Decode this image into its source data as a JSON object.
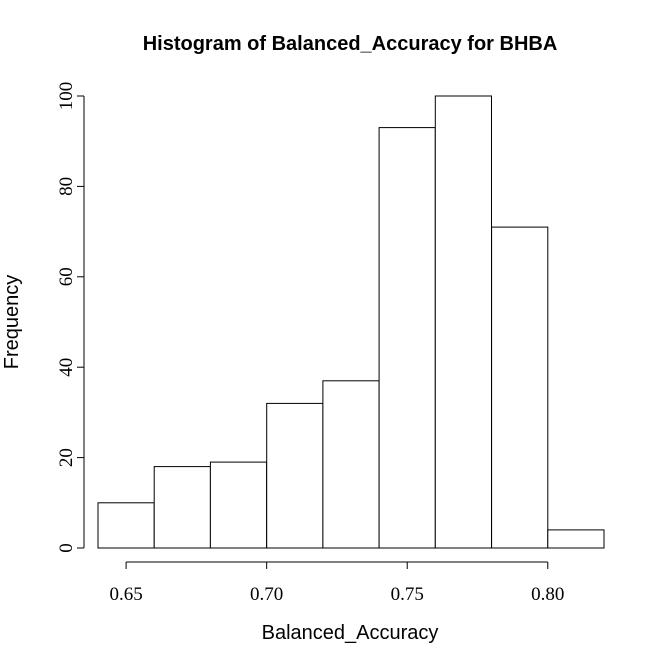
{
  "chart_data": {
    "type": "bar",
    "title": "Histogram of Balanced_Accuracy for BHBA",
    "xlabel": "Balanced_Accuracy",
    "ylabel": "Frequency",
    "bins": [
      {
        "start": 0.64,
        "end": 0.66,
        "count": 10
      },
      {
        "start": 0.66,
        "end": 0.68,
        "count": 18
      },
      {
        "start": 0.68,
        "end": 0.7,
        "count": 19
      },
      {
        "start": 0.7,
        "end": 0.72,
        "count": 32
      },
      {
        "start": 0.72,
        "end": 0.74,
        "count": 37
      },
      {
        "start": 0.74,
        "end": 0.76,
        "count": 93
      },
      {
        "start": 0.76,
        "end": 0.78,
        "count": 100
      },
      {
        "start": 0.78,
        "end": 0.8,
        "count": 71
      },
      {
        "start": 0.8,
        "end": 0.82,
        "count": 4
      }
    ],
    "xticks": [
      "0.65",
      "0.70",
      "0.75",
      "0.80"
    ],
    "yticks": [
      "0",
      "20",
      "40",
      "60",
      "80",
      "100"
    ],
    "xlim": [
      0.64,
      0.82
    ],
    "ylim": [
      0,
      100
    ],
    "grid": false
  }
}
